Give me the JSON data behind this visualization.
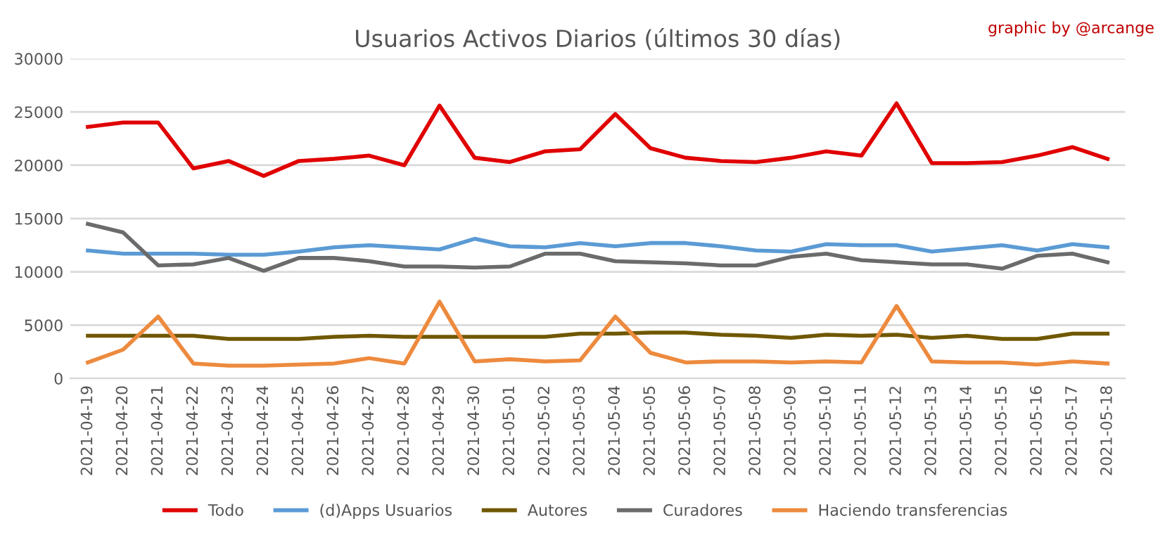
{
  "chart_data": {
    "type": "line",
    "title": "Usuarios Activos Diarios (últimos 30 días)",
    "annotations": [
      "graphic by @arcange"
    ],
    "categories": [
      "2021-04-19",
      "2021-04-20",
      "2021-04-21",
      "2021-04-22",
      "2021-04-23",
      "2021-04-24",
      "2021-04-25",
      "2021-04-26",
      "2021-04-27",
      "2021-04-28",
      "2021-04-29",
      "2021-04-30",
      "2021-05-01",
      "2021-05-02",
      "2021-05-03",
      "2021-05-04",
      "2021-05-05",
      "2021-05-06",
      "2021-05-07",
      "2021-05-08",
      "2021-05-09",
      "2021-05-10",
      "2021-05-11",
      "2021-05-12",
      "2021-05-13",
      "2021-05-14",
      "2021-05-15",
      "2021-05-16",
      "2021-05-17",
      "2021-05-18"
    ],
    "series": [
      {
        "name": "Todo",
        "color": "#e00000",
        "values": [
          23600,
          24000,
          24000,
          19700,
          20400,
          19000,
          20400,
          20600,
          20900,
          20000,
          25600,
          20700,
          20300,
          21300,
          21500,
          24800,
          21600,
          20700,
          20400,
          20300,
          20700,
          21300,
          20900,
          25800,
          20200,
          20200,
          20300,
          20900,
          21700,
          20600
        ]
      },
      {
        "name": "(d)Apps Usuarios",
        "color": "#5b9bd5",
        "values": [
          12000,
          11700,
          11700,
          11700,
          11600,
          11600,
          11900,
          12300,
          12500,
          12300,
          12100,
          13100,
          12400,
          12300,
          12700,
          12400,
          12700,
          12700,
          12400,
          12000,
          11900,
          12600,
          12500,
          12500,
          11900,
          12200,
          12500,
          12000,
          12600,
          12300
        ]
      },
      {
        "name": "Autores",
        "color": "#705800",
        "values": [
          4000,
          4000,
          4000,
          4000,
          3700,
          3700,
          3700,
          3900,
          4000,
          3900,
          3900,
          3900,
          3900,
          3900,
          4200,
          4200,
          4300,
          4300,
          4100,
          4000,
          3800,
          4100,
          4000,
          4100,
          3800,
          4000,
          3700,
          3700,
          4200,
          4200
        ]
      },
      {
        "name": "Curadores",
        "color": "#6b6b6b",
        "values": [
          14500,
          13700,
          10600,
          10700,
          11300,
          10100,
          11300,
          11300,
          11000,
          10500,
          10500,
          10400,
          10500,
          11700,
          11700,
          11000,
          10900,
          10800,
          10600,
          10600,
          11400,
          11700,
          11100,
          10900,
          10700,
          10700,
          10300,
          11500,
          11700,
          10900
        ]
      },
      {
        "name": "Haciendo transferencias",
        "color": "#ed8a3e",
        "values": [
          1500,
          2700,
          5800,
          1400,
          1200,
          1200,
          1300,
          1400,
          1900,
          1400,
          7200,
          1600,
          1800,
          1600,
          1700,
          5800,
          2400,
          1500,
          1600,
          1600,
          1500,
          1600,
          1500,
          6800,
          1600,
          1500,
          1500,
          1300,
          1600,
          1400
        ]
      }
    ],
    "ylim": [
      0,
      30000
    ],
    "yticks": [
      0,
      5000,
      10000,
      15000,
      20000,
      25000,
      30000
    ],
    "grid": "y",
    "legend": "bottom",
    "marker": "none",
    "line_style": "solid"
  }
}
